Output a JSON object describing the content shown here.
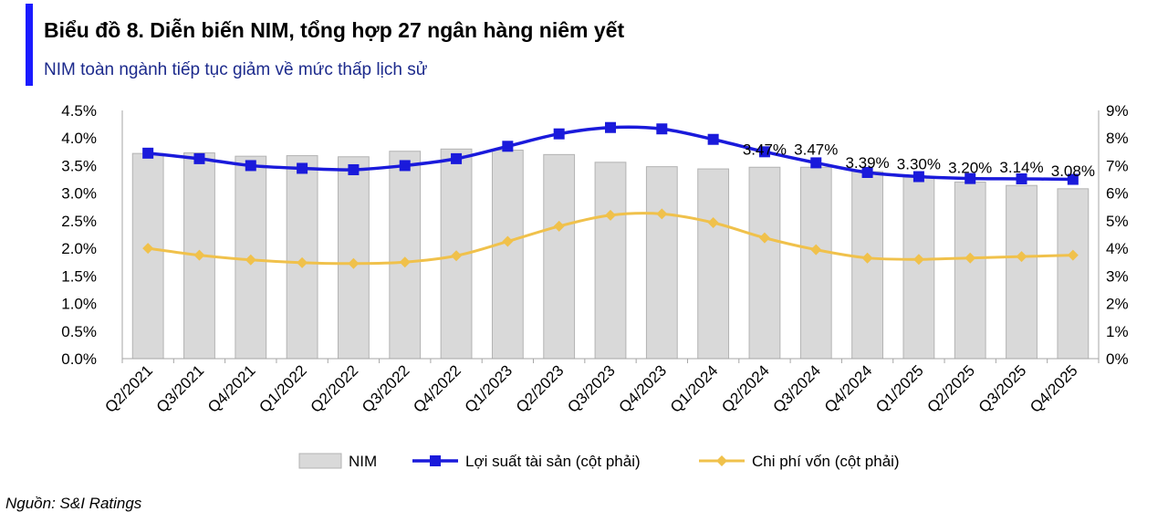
{
  "header": {
    "title": "Biểu đồ 8. Diễn biến NIM, tổng hợp 27 ngân hàng niêm yết",
    "subtitle": "NIM toàn ngành tiếp tục giảm về mức thấp lịch sử"
  },
  "footer": {
    "source": "Nguồn: S&I Ratings"
  },
  "chart_data": {
    "type": "bar",
    "title": "Biểu đồ 8. Diễn biến NIM, tổng hợp 27 ngân hàng niêm yết",
    "subtitle": "NIM toàn ngành tiếp tục giảm về mức thấp lịch sử",
    "categories": [
      "Q2/2021",
      "Q3/2021",
      "Q4/2021",
      "Q1/2022",
      "Q2/2022",
      "Q3/2022",
      "Q4/2022",
      "Q1/2023",
      "Q2/2023",
      "Q3/2023",
      "Q4/2023",
      "Q1/2024",
      "Q2/2024",
      "Q3/2024",
      "Q4/2024",
      "Q1/2025",
      "Q2/2025",
      "Q3/2025",
      "Q4/2025"
    ],
    "left_axis": {
      "min": 0,
      "max": 4.5,
      "step": 0.5,
      "ticks": [
        "0.0%",
        "0.5%",
        "1.0%",
        "1.5%",
        "2.0%",
        "2.5%",
        "3.0%",
        "3.5%",
        "4.0%",
        "4.5%"
      ]
    },
    "right_axis": {
      "min": 0,
      "max": 9,
      "step": 1,
      "ticks": [
        "0%",
        "1%",
        "2%",
        "3%",
        "4%",
        "5%",
        "6%",
        "7%",
        "8%",
        "9%"
      ]
    },
    "series": [
      {
        "name": "NIM",
        "kind": "bar",
        "axis": "left",
        "color": "#d9d9d9",
        "edge": "#b3b3b3",
        "values": [
          3.72,
          3.73,
          3.67,
          3.68,
          3.66,
          3.76,
          3.8,
          3.78,
          3.7,
          3.56,
          3.48,
          3.44,
          3.47,
          3.47,
          3.39,
          3.3,
          3.2,
          3.14,
          3.08
        ],
        "data_labels": [
          "",
          "",
          "",
          "",
          "",
          "",
          "",
          "",
          "",
          "",
          "",
          "",
          "3.47%",
          "3.47%",
          "3.39%",
          "3.30%",
          "3.20%",
          "3.14%",
          "3.08%"
        ]
      },
      {
        "name": "Lợi suất tài sản (cột phải)",
        "kind": "line",
        "axis": "right",
        "color": "#1a1adb",
        "marker": "square",
        "values": [
          7.45,
          7.25,
          7.0,
          6.9,
          6.85,
          7.0,
          7.25,
          7.7,
          8.15,
          8.38,
          8.33,
          7.95,
          7.5,
          7.1,
          6.75,
          6.6,
          6.53,
          6.52,
          6.5
        ]
      },
      {
        "name": "Chi phí vốn (cột phải)",
        "kind": "line",
        "axis": "right",
        "color": "#f0c14b",
        "marker": "diamond",
        "values": [
          4.0,
          3.75,
          3.58,
          3.48,
          3.45,
          3.5,
          3.73,
          4.25,
          4.8,
          5.2,
          5.25,
          4.93,
          4.38,
          3.95,
          3.65,
          3.6,
          3.65,
          3.7,
          3.75
        ]
      }
    ],
    "legend": {
      "position": "bottom"
    },
    "grid": false
  }
}
